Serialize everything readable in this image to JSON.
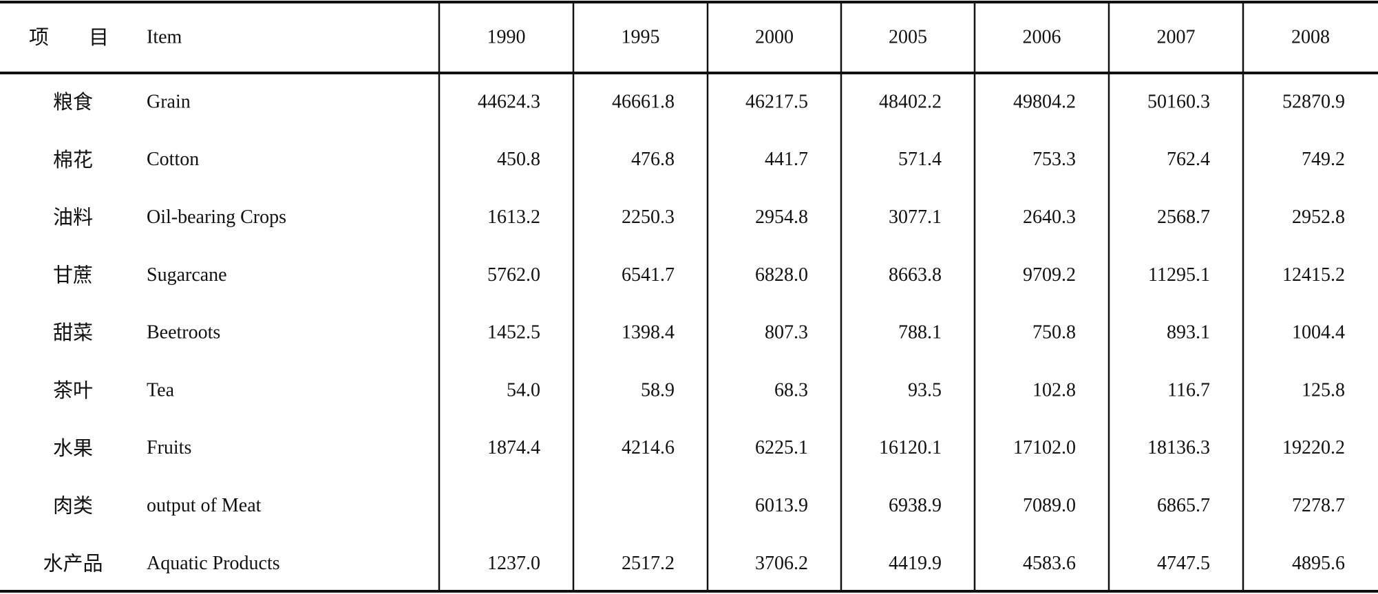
{
  "table": {
    "header": [
      "项　　目",
      "Item",
      "1990",
      "1995",
      "2000",
      "2005",
      "2006",
      "2007",
      "2008"
    ],
    "rows": [
      [
        "粮食",
        "Grain",
        "44624.3",
        "46661.8",
        "46217.5",
        "48402.2",
        "49804.2",
        "50160.3",
        "52870.9"
      ],
      [
        "棉花",
        "Cotton",
        "450.8",
        "476.8",
        "441.7",
        "571.4",
        "753.3",
        "762.4",
        "749.2"
      ],
      [
        "油料",
        "Oil-bearing Crops",
        "1613.2",
        "2250.3",
        "2954.8",
        "3077.1",
        "2640.3",
        "2568.7",
        "2952.8"
      ],
      [
        "甘蔗",
        "Sugarcane",
        "5762.0",
        "6541.7",
        "6828.0",
        "8663.8",
        "9709.2",
        "11295.1",
        "12415.2"
      ],
      [
        "甜菜",
        "Beetroots",
        "1452.5",
        "1398.4",
        "807.3",
        "788.1",
        "750.8",
        "893.1",
        "1004.4"
      ],
      [
        "茶叶",
        "Tea",
        "54.0",
        "58.9",
        "68.3",
        "93.5",
        "102.8",
        "116.7",
        "125.8"
      ],
      [
        "水果",
        "Fruits",
        "1874.4",
        "4214.6",
        "6225.1",
        "16120.1",
        "17102.0",
        "18136.3",
        "19220.2"
      ],
      [
        "肉类",
        "output of Meat",
        null,
        null,
        "6013.9",
        "6938.9",
        "7089.0",
        "6865.7",
        "7278.7"
      ],
      [
        "水产品",
        "Aquatic Products",
        "1237.0",
        "2517.2",
        "3706.2",
        "4419.9",
        "4583.6",
        "4747.5",
        "4895.6"
      ]
    ]
  }
}
